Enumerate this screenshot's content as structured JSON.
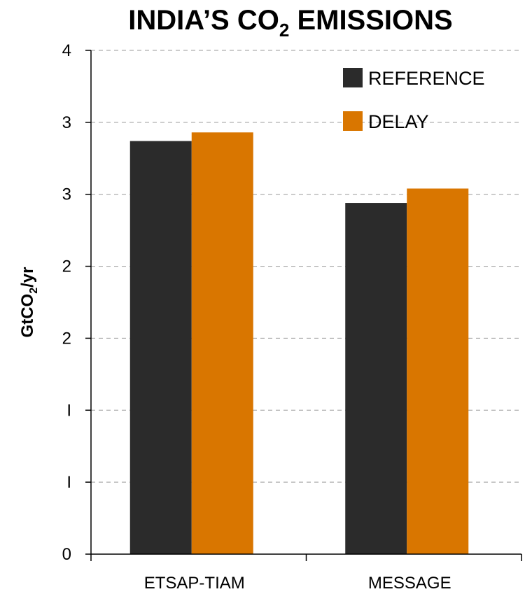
{
  "colors": {
    "reference": "#2b2b2b",
    "delay": "#d97600",
    "axis": "#000000",
    "grid": "#999999"
  },
  "chart_data": {
    "type": "bar",
    "title": "INDIA’S CO₂ EMISSIONS",
    "title_parts": {
      "before": "INDIA’S CO",
      "sub": "2",
      "after": " EMISSIONS"
    },
    "ylabel": "GtCO₂/yr",
    "ylabel_parts": {
      "before": "GtCO",
      "sub": "2",
      "after": "/yr"
    },
    "xlabel": "",
    "categories": [
      "ETSAP-TIAM",
      "MESSAGE"
    ],
    "ylim": [
      0,
      3.5
    ],
    "y_ticks": [
      0,
      0.5,
      1,
      1.5,
      2,
      2.5,
      3,
      3.5
    ],
    "y_tick_labels": [
      "0",
      "I",
      "I",
      "2",
      "2",
      "3",
      "3",
      "4"
    ],
    "grid": true,
    "grid_style": "dashed",
    "legend_position": "top-right",
    "series": [
      {
        "name": "REFERENCE",
        "values": [
          2.87,
          2.44
        ]
      },
      {
        "name": "DELAY",
        "values": [
          2.93,
          2.54
        ]
      }
    ]
  }
}
